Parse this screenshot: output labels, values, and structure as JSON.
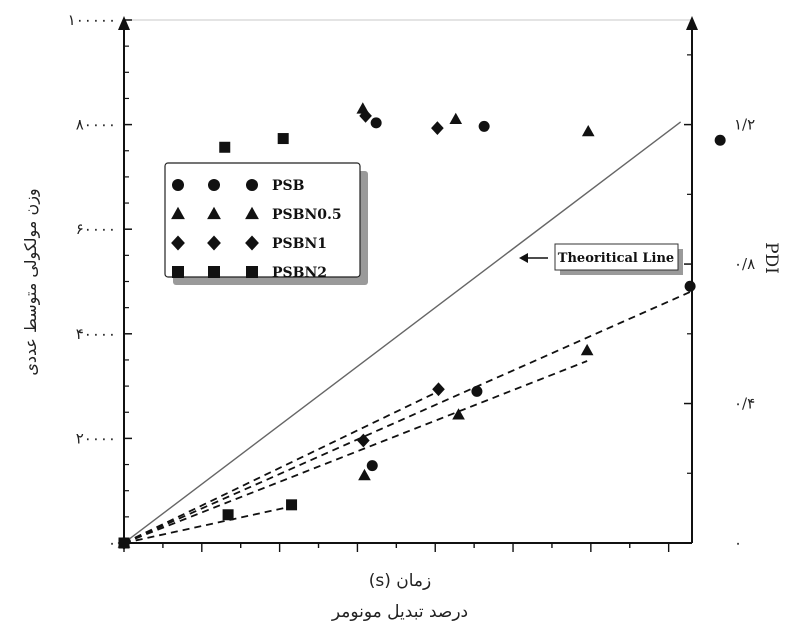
{
  "chart_data": {
    "type": "scatter",
    "xlabel_top": "(s) زمان",
    "xlabel_bottom": "درصد تبدیل مونومر",
    "ylabel_left": "وزن مولکولی متوسط عددی",
    "ylabel_right": "PDI",
    "ylim_left": [
      0,
      100000
    ],
    "ylim_right": [
      0,
      1.5
    ],
    "xlim": [
      0,
      100
    ],
    "left_ticks": [
      {
        "value": 0,
        "label": "۰"
      },
      {
        "value": 20000,
        "label": "۲۰۰۰۰"
      },
      {
        "value": 40000,
        "label": "۴۰۰۰۰"
      },
      {
        "value": 60000,
        "label": "۶۰۰۰۰"
      },
      {
        "value": 80000,
        "label": "۸۰۰۰۰"
      },
      {
        "value": 100000,
        "label": "۱۰۰۰۰۰"
      }
    ],
    "right_ticks": [
      {
        "value": 0,
        "label": "۰"
      },
      {
        "value": 0.4,
        "label": "۰/۴"
      },
      {
        "value": 0.8,
        "label": "۰/۸"
      },
      {
        "value": 1.2,
        "label": "۱/۲"
      }
    ],
    "grid": false,
    "legend_position": "upper-left",
    "annotation": "Theoritical Line",
    "series": [
      {
        "name": "PSB",
        "marker": "circle",
        "mn": [
          [
            0,
            0
          ],
          [
            44.6,
            14.8
          ],
          [
            63.4,
            29.0
          ],
          [
            101.7,
            49.1
          ]
        ],
        "pdi": [
          [
            45.3,
            1.205
          ],
          [
            64.7,
            1.195
          ],
          [
            107.1,
            1.155
          ]
        ],
        "fit": [
          [
            0,
            0
          ],
          [
            101.7,
            48.0
          ]
        ]
      },
      {
        "name": "PSBN0.5",
        "marker": "triangle",
        "mn": [
          [
            0,
            0
          ],
          [
            43.2,
            12.9
          ],
          [
            60.1,
            24.5
          ],
          [
            83.2,
            36.8
          ]
        ],
        "pdi": [
          [
            42.9,
            1.245
          ],
          [
            59.6,
            1.215
          ],
          [
            83.4,
            1.18
          ]
        ],
        "fit": [
          [
            0,
            0
          ],
          [
            83.2,
            34.8
          ]
        ]
      },
      {
        "name": "PSBN1",
        "marker": "diamond",
        "mn": [
          [
            0,
            0
          ],
          [
            43.0,
            19.6
          ],
          [
            56.5,
            29.4
          ]
        ],
        "pdi": [
          [
            43.4,
            1.225
          ],
          [
            56.3,
            1.19
          ]
        ],
        "fit": [
          [
            0,
            0
          ],
          [
            56.5,
            29.0
          ]
        ]
      },
      {
        "name": "PSBN2",
        "marker": "square",
        "mn": [
          [
            0,
            0
          ],
          [
            18.7,
            5.4
          ],
          [
            30.1,
            7.3
          ]
        ],
        "pdi": [
          [
            18.1,
            1.135
          ],
          [
            28.6,
            1.16
          ]
        ],
        "fit": [
          [
            0,
            0
          ],
          [
            30.1,
            7.0
          ]
        ]
      }
    ],
    "theoretical_line": [
      [
        0,
        0
      ],
      [
        100,
        80.5
      ]
    ]
  }
}
